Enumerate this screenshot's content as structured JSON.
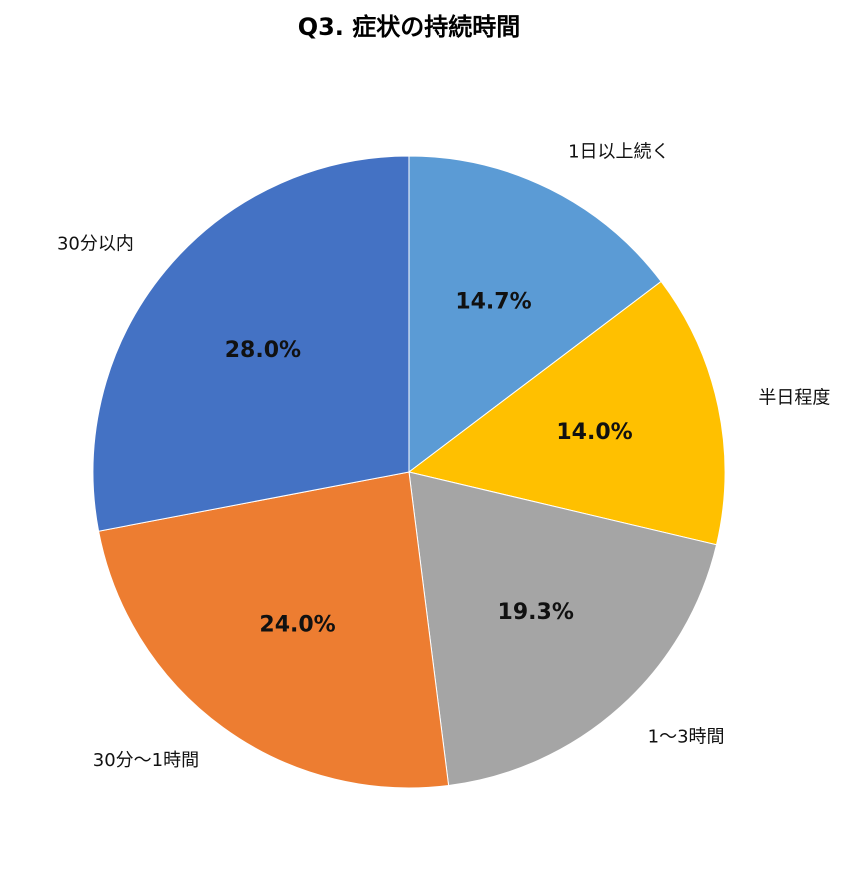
{
  "chart_data": {
    "type": "pie",
    "title": "Q3. 症状の持続時間",
    "categories": [
      "1日以上続く",
      "半日程度",
      "1〜3時間",
      "30分〜1時間",
      "30分以内"
    ],
    "values": [
      14.7,
      14.0,
      19.3,
      24.0,
      28.0
    ],
    "value_labels": [
      "14.7%",
      "14.0%",
      "19.3%",
      "24.0%",
      "28.0%"
    ],
    "colors": [
      "#5b9bd5",
      "#ffc000",
      "#a5a5a5",
      "#ed7d31",
      "#4472c4"
    ]
  }
}
